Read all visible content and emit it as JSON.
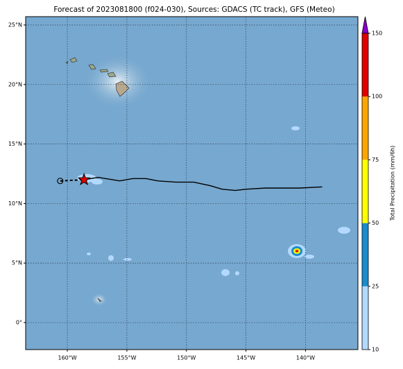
{
  "chart_data": {
    "type": "map",
    "title": "Forecast of 2023081800 (f024-030), Sources: GDACS (TC track), GFS (Meteo)",
    "xlim": [
      -163.5,
      -135.6
    ],
    "ylim": [
      -2.27,
      25.7
    ],
    "xticks": [
      {
        "value": -160,
        "label": "160°W"
      },
      {
        "value": -155,
        "label": "155°W"
      },
      {
        "value": -150,
        "label": "150°W"
      },
      {
        "value": -145,
        "label": "145°W"
      },
      {
        "value": -140,
        "label": "140°W"
      }
    ],
    "yticks": [
      {
        "value": 0,
        "label": "0°"
      },
      {
        "value": 5,
        "label": "5°N"
      },
      {
        "value": 10,
        "label": "10°N"
      },
      {
        "value": 15,
        "label": "15°N"
      },
      {
        "value": 20,
        "label": "20°N"
      },
      {
        "value": 25,
        "label": "25°N"
      }
    ],
    "grid": true,
    "track": {
      "x": [
        -160.6,
        -158.6,
        -157.4,
        -155.6,
        -154.5,
        -153.4,
        -152.4,
        -150.9,
        -149.4,
        -148.0,
        -147.0,
        -145.9,
        -145.0,
        -143.4,
        -141.5,
        -140.5,
        -138.6
      ],
      "y": [
        11.9,
        12.0,
        12.2,
        11.9,
        12.1,
        12.1,
        11.9,
        11.8,
        11.8,
        11.5,
        11.2,
        11.1,
        11.2,
        11.3,
        11.3,
        11.3,
        11.4
      ]
    },
    "colorbar": {
      "label": "Total Precipitation (mm/6h)",
      "levels": [
        10,
        25,
        50,
        75,
        100,
        150
      ],
      "colors": [
        "#b3d9ff",
        "#1a8ccc",
        "#ffff00",
        "#ffa500",
        "#e00000"
      ],
      "extend_color": "#8800cc"
    }
  }
}
